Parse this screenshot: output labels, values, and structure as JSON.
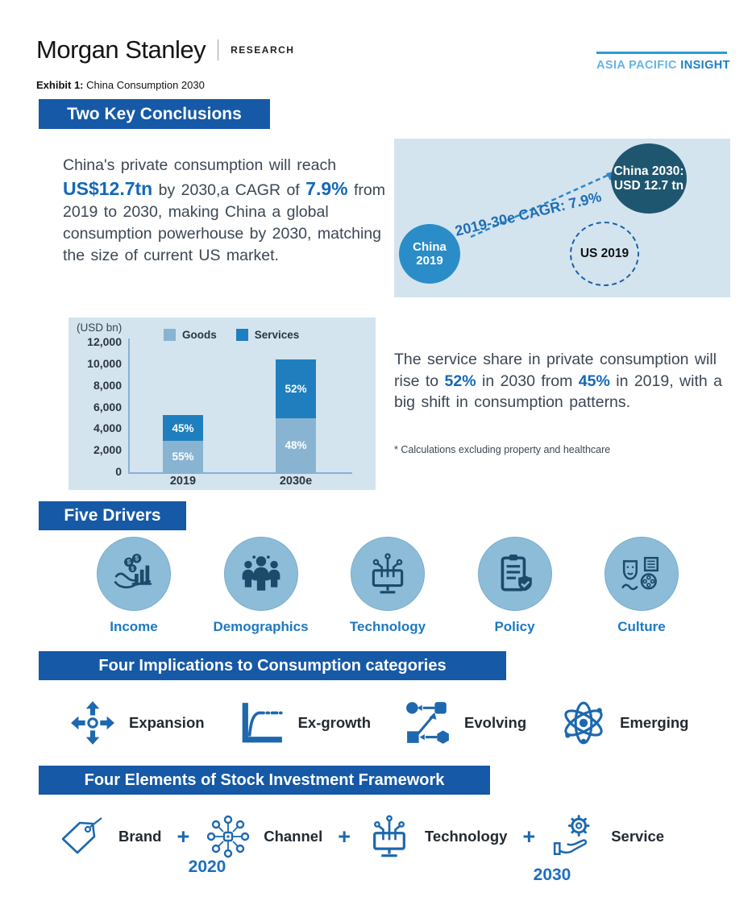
{
  "header": {
    "brand": "Morgan Stanley",
    "division": "RESEARCH",
    "region_light": "ASIA PACIFIC",
    "region_dark": "INSIGHT",
    "exhibit_label": "Exhibit 1:",
    "exhibit_title": "China Consumption 2030"
  },
  "colors": {
    "banner_blue": "#1659a7",
    "accent_blue": "#1467b8",
    "panel_bg": "#d3e4ef",
    "goods_bar": "#88b4d2",
    "services_bar": "#1f7fbe",
    "china2019_circle": "#2b8dc7",
    "china2030_circle": "#1f566f",
    "region_light_blue": "#62b5e5",
    "region_dark_blue": "#1b80c5",
    "driver_circle": "#8cbcd8",
    "driver_glyph": "#1b4a6b",
    "icon_blue": "#1d68ae"
  },
  "section1": {
    "banner": "Two Key Conclusions",
    "p_seg1": "China's private consumption will reach ",
    "p_strong1": "US$12.7tn",
    "p_seg2": " by 2030,a CAGR of ",
    "p_strong2": "7.9%",
    "p_seg3": " from 2019 to 2030, making China a global consumption powerhouse by 2030, matching the size of current US market.",
    "diagram": {
      "china2019_line1": "China",
      "china2019_line2": "2019",
      "china2030_line1": "China 2030:",
      "china2030_line2": "USD 12.7 tn",
      "us2019": "US 2019",
      "cagr_label": "2019-30e CAGR: 7.9%"
    }
  },
  "chart_data": {
    "type": "bar",
    "stacked": true,
    "unit_label": "(USD bn)",
    "categories": [
      "2019",
      "2030e"
    ],
    "series": [
      {
        "name": "Goods",
        "color": "#88b4d2",
        "values": [
          2890,
          4990
        ],
        "pct_labels": [
          "55%",
          "48%"
        ]
      },
      {
        "name": "Services",
        "color": "#1f7fbe",
        "values": [
          2360,
          5410
        ],
        "pct_labels": [
          "45%",
          "52%"
        ]
      }
    ],
    "totals": [
      5250,
      10400
    ],
    "ylim": [
      0,
      12000
    ],
    "yticks": [
      "12,000",
      "10,000",
      "8,000",
      "6,000",
      "4,000",
      "2,000",
      "0"
    ],
    "grid": false,
    "legend_position": "top"
  },
  "section2": {
    "p_seg1": "The service share in private consumption will rise to ",
    "p_strong1": "52%",
    "p_seg2": " in 2030 from ",
    "p_strong2": "45%",
    "p_seg3": " in 2019, with a big shift in consumption patterns.",
    "footnote": "* Calculations excluding property and healthcare"
  },
  "drivers": {
    "banner": "Five Drivers",
    "items": [
      {
        "label": "Income"
      },
      {
        "label": "Demographics"
      },
      {
        "label": "Technology"
      },
      {
        "label": "Policy"
      },
      {
        "label": "Culture"
      }
    ]
  },
  "implications": {
    "banner": "Four Implications to Consumption categories",
    "items": [
      {
        "label": "Expansion"
      },
      {
        "label": "Ex-growth"
      },
      {
        "label": "Evolving"
      },
      {
        "label": "Emerging"
      }
    ]
  },
  "framework": {
    "banner": "Four Elements of Stock Investment Framework",
    "plus": "+",
    "items": [
      {
        "label": "Brand"
      },
      {
        "label": "Channel"
      },
      {
        "label": "Technology"
      },
      {
        "label": "Service"
      }
    ],
    "year_start": "2020",
    "year_end": "2030"
  }
}
